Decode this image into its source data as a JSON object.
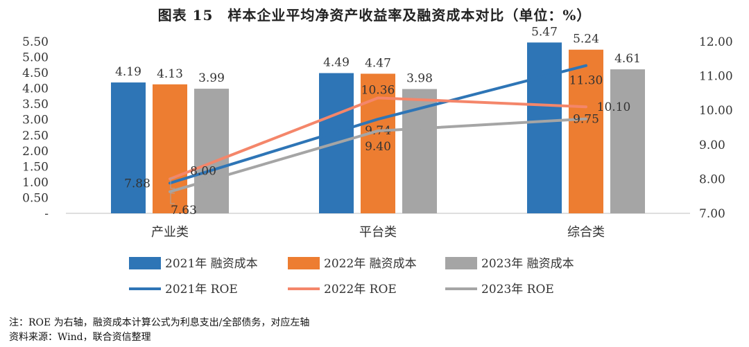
{
  "title": "图表 15　样本企业平均净资产收益率及融资成本对比（单位：%）",
  "notes": {
    "note1": "注：ROE 为右轴，融资成本计算公式为利息支出/全部债务，对应左轴",
    "note2": "资料来源：Wind，联合资信整理"
  },
  "colors": {
    "y2021": "#2E75B6",
    "y2022": "#ED7D31",
    "y2023": "#A5A5A5",
    "roe2022": "#F4866A",
    "axis": "#BFBFBF"
  },
  "chart_data": {
    "type": "bar",
    "categories": [
      "产业类",
      "平台类",
      "综合类"
    ],
    "left_axis": {
      "min": 0,
      "max": 5.5,
      "step": 0.5,
      "ticks": [
        "-",
        "0.50",
        "1.00",
        "1.50",
        "2.00",
        "2.50",
        "3.00",
        "3.50",
        "4.00",
        "4.50",
        "5.00",
        "5.50"
      ]
    },
    "right_axis": {
      "min": 7.0,
      "max": 12.0,
      "step": 1.0,
      "ticks": [
        "7.00",
        "8.00",
        "9.00",
        "10.00",
        "11.00",
        "12.00"
      ]
    },
    "bar_series": [
      {
        "name": "2021年 融资成本",
        "color": "#2E75B6",
        "values": [
          4.19,
          4.49,
          5.47
        ],
        "labels": [
          "4.19",
          "4.49",
          "5.47"
        ]
      },
      {
        "name": "2022年 融资成本",
        "color": "#ED7D31",
        "values": [
          4.13,
          4.47,
          5.24
        ],
        "labels": [
          "4.13",
          "4.47",
          "5.24"
        ]
      },
      {
        "name": "2023年 融资成本",
        "color": "#A5A5A5",
        "values": [
          3.99,
          3.98,
          4.61
        ],
        "labels": [
          "3.99",
          "3.98",
          "4.61"
        ]
      }
    ],
    "line_series": [
      {
        "name": "2021年 ROE",
        "color": "#2E75B6",
        "values": [
          7.88,
          9.74,
          11.3
        ],
        "labels": [
          "7.88",
          "9.74",
          "11.30"
        ]
      },
      {
        "name": "2022年 ROE",
        "color": "#F4866A",
        "values": [
          8.0,
          10.36,
          10.1
        ],
        "labels": [
          "8.00",
          "10.36",
          "10.10"
        ]
      },
      {
        "name": "2023年 ROE",
        "color": "#A5A5A5",
        "values": [
          7.63,
          9.4,
          9.75
        ],
        "labels": [
          "7.63",
          "9.40",
          "9.75"
        ]
      }
    ],
    "legend_position": "bottom"
  }
}
